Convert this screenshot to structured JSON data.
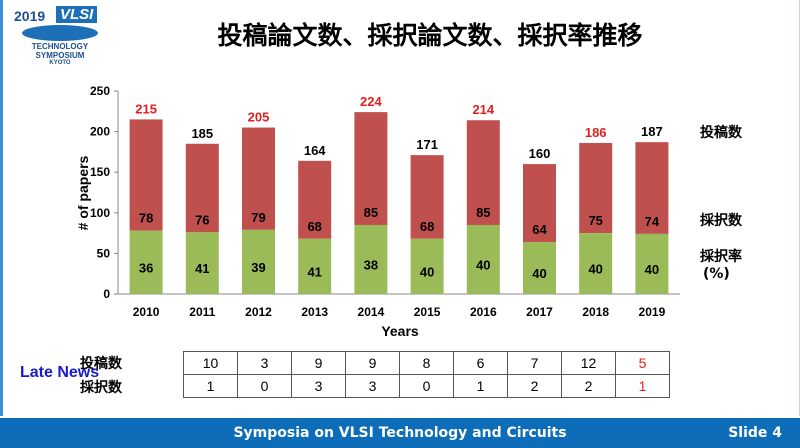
{
  "logo": {
    "year": "2019",
    "brand": "VLSI",
    "line1": "TECHNOLOGY",
    "line2": "SYMPOSIUM",
    "line3": "KYOTO"
  },
  "title": "投稿論文数、採択論文数、採択率推移",
  "chart_data": {
    "type": "bar",
    "stacked": true,
    "categories": [
      "2010",
      "2011",
      "2012",
      "2013",
      "2014",
      "2015",
      "2016",
      "2017",
      "2018",
      "2019"
    ],
    "totals": [
      215,
      185,
      205,
      164,
      224,
      171,
      214,
      160,
      186,
      187
    ],
    "accepted": [
      78,
      76,
      79,
      68,
      85,
      68,
      85,
      64,
      75,
      74
    ],
    "acceptance_rate": [
      36,
      41,
      39,
      41,
      38,
      40,
      40,
      40,
      40,
      40
    ],
    "highlight_total": [
      true,
      false,
      true,
      false,
      true,
      false,
      true,
      false,
      true,
      false
    ],
    "xlabel": "Years",
    "ylabel": "# of papers",
    "ylim": [
      0,
      250
    ],
    "yticks": [
      0,
      50,
      100,
      150,
      200,
      250
    ],
    "colors": {
      "accepted": "#9bbb59",
      "rejected": "#c0504d",
      "highlight": "#e02020"
    },
    "right_labels": {
      "total": "投稿数",
      "accepted": "採択数",
      "rate": "採択率",
      "rate_unit": "(%)"
    }
  },
  "late_news": {
    "label": "Late News",
    "row_labels": [
      "投稿数",
      "採択数"
    ],
    "submitted": [
      "10",
      "3",
      "9",
      "9",
      "8",
      "6",
      "7",
      "12",
      "5"
    ],
    "accepted": [
      "1",
      "0",
      "3",
      "3",
      "0",
      "1",
      "2",
      "2",
      "1"
    ]
  },
  "footer": {
    "center": "Symposia on VLSI Technology and Circuits",
    "slide": "Slide 4"
  }
}
